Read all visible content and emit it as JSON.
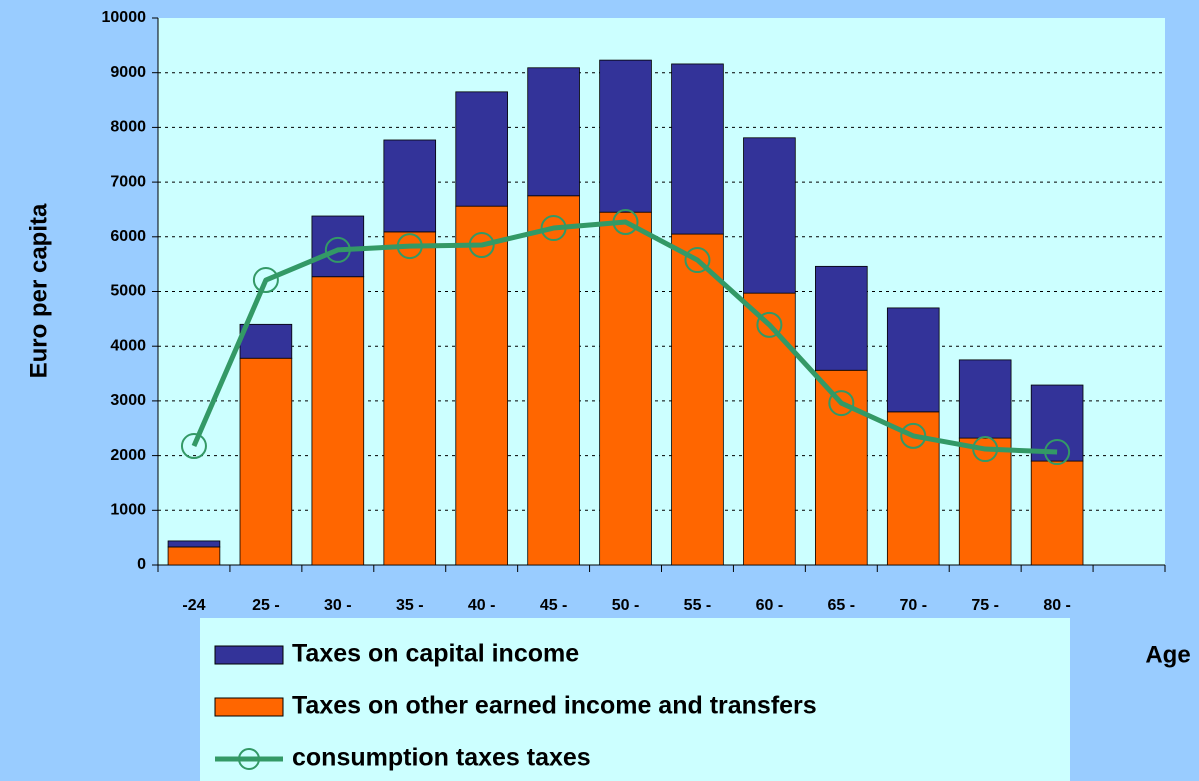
{
  "chart_data": {
    "type": "bar",
    "stacked": true,
    "y_axis_label": "Euro per capita",
    "x_axis_label": "Age",
    "categories": [
      "-24",
      "25 -",
      "30 -",
      "35 -",
      "40 -",
      "45 -",
      "50 -",
      "55 -",
      "60 -",
      "65 -",
      "70 -",
      "75 -",
      "80 -",
      null
    ],
    "series": [
      {
        "name": "Taxes on capital income",
        "color": "#333399",
        "type": "bar",
        "values": [
          110,
          620,
          1110,
          1680,
          2090,
          2340,
          2780,
          3110,
          2840,
          1900,
          1900,
          1430,
          1390,
          null
        ]
      },
      {
        "name": "Taxes on other earned income and transfers",
        "color": "#ff6600",
        "type": "bar",
        "values": [
          330,
          3780,
          5270,
          6090,
          6560,
          6750,
          6450,
          6050,
          4970,
          3560,
          2800,
          2320,
          1900,
          null
        ]
      },
      {
        "name": "consumption taxes taxes",
        "color": "#339966",
        "type": "line",
        "values": [
          2175,
          5210,
          5760,
          5830,
          5850,
          6160,
          6270,
          5575,
          4390,
          2960,
          2360,
          2120,
          2065,
          null
        ]
      }
    ],
    "ylim": [
      0,
      10000
    ],
    "yticks": [
      0,
      1000,
      2000,
      3000,
      4000,
      5000,
      6000,
      7000,
      8000,
      9000,
      10000
    ],
    "grid": true
  }
}
